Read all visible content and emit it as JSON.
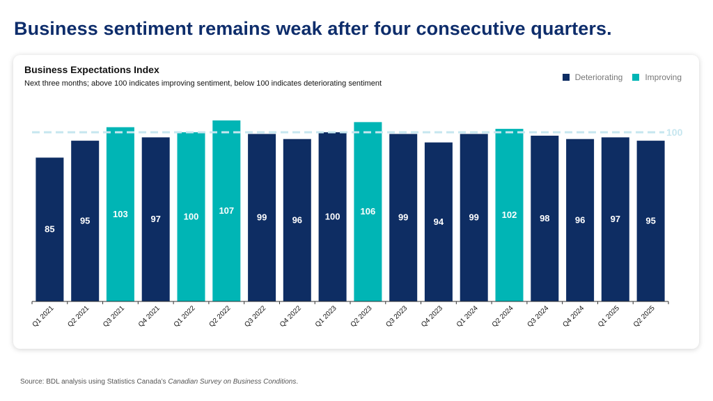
{
  "page_title": "Business sentiment remains weak after four consecutive quarters.",
  "source": {
    "prefix": "Source: BDL analysis using Statistics Canada’s ",
    "italic": "Canadian Survey on Business Conditions",
    "suffix": "."
  },
  "colors": {
    "deteriorating": "#0e2d63",
    "improving": "#00b5b5",
    "reference": "#c6e6ef",
    "title": "#0e2d6b"
  },
  "chart_data": {
    "type": "bar",
    "title": "Business Expectations Index",
    "subtitle": "Next three months; above 100 indicates improving sentiment, below 100 indicates deteriorating sentiment",
    "categories": [
      "Q1 2021",
      "Q2 2021",
      "Q3 2021",
      "Q4 2021",
      "Q1 2022",
      "Q2 2022",
      "Q3 2022",
      "Q4 2022",
      "Q1 2023",
      "Q2 2023",
      "Q3 2023",
      "Q4 2023",
      "Q1 2024",
      "Q2 2024",
      "Q3 2024",
      "Q4 2024",
      "Q1 2025",
      "Q2 2025"
    ],
    "values": [
      85,
      95,
      103,
      97,
      100,
      107,
      99,
      96,
      100,
      106,
      99,
      94,
      99,
      102,
      98,
      96,
      97,
      95
    ],
    "status": [
      "Deteriorating",
      "Deteriorating",
      "Improving",
      "Deteriorating",
      "Improving",
      "Improving",
      "Deteriorating",
      "Deteriorating",
      "Deteriorating",
      "Improving",
      "Deteriorating",
      "Deteriorating",
      "Deteriorating",
      "Improving",
      "Deteriorating",
      "Deteriorating",
      "Deteriorating",
      "Deteriorating"
    ],
    "legend": [
      {
        "label": "Deteriorating",
        "color_key": "deteriorating"
      },
      {
        "label": "Improving",
        "color_key": "improving"
      }
    ],
    "reference_line": {
      "value": 100,
      "label": "100"
    },
    "ylim": [
      0,
      110
    ],
    "xlabel": "",
    "ylabel": "",
    "grid": false,
    "legend_position": "top-right"
  }
}
